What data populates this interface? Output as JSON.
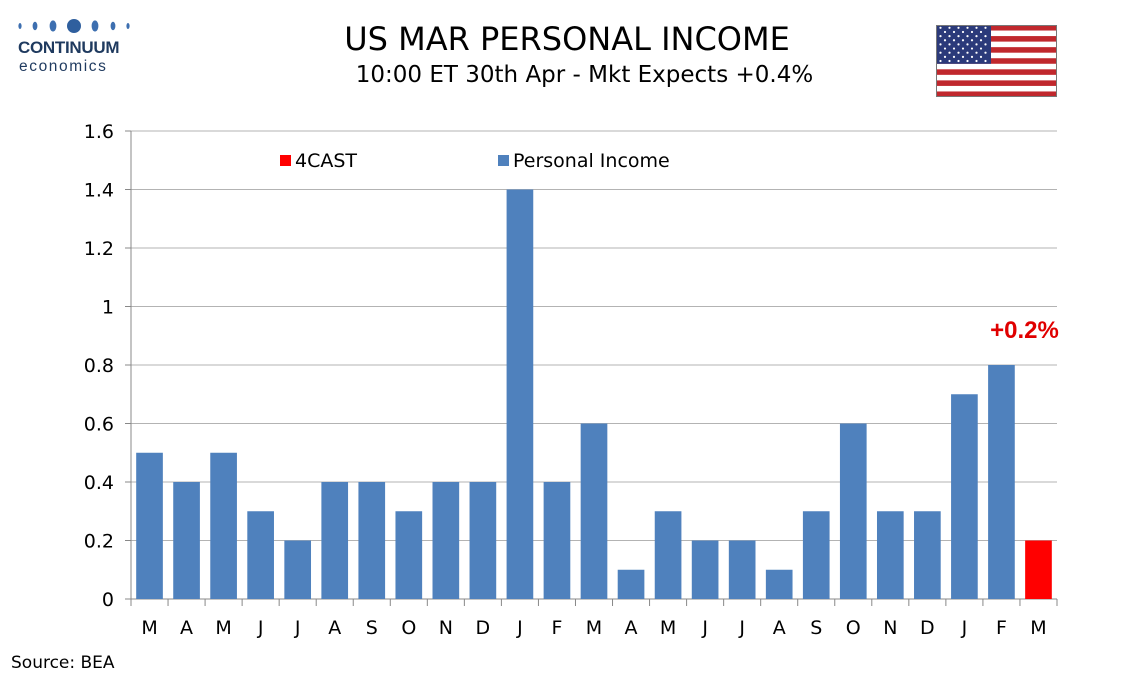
{
  "brand": {
    "name_top": "CONTINUUM",
    "name_bottom": "economics"
  },
  "header": {
    "title": "US MAR PERSONAL INCOME",
    "subtitle": "10:00 ET 30th Apr - Mkt Expects +0.4%"
  },
  "flag_icon": "us-flag-icon",
  "source": "Source: BEA",
  "colors": {
    "actual": "#4f81bd",
    "forecast": "#ff0000",
    "annotation": "#e00000",
    "grid": "#b3b3b3",
    "axis": "#888888"
  },
  "chart_data": {
    "type": "bar",
    "categories": [
      "M",
      "A",
      "M",
      "J",
      "J",
      "A",
      "S",
      "O",
      "N",
      "D",
      "J",
      "F",
      "M",
      "A",
      "M",
      "J",
      "J",
      "A",
      "S",
      "O",
      "N",
      "D",
      "J",
      "F",
      "M"
    ],
    "series": [
      {
        "name": "Personal Income",
        "values": [
          0.5,
          0.4,
          0.5,
          0.3,
          0.2,
          0.4,
          0.4,
          0.3,
          0.4,
          0.4,
          1.4,
          0.4,
          0.6,
          0.1,
          0.3,
          0.2,
          0.2,
          0.1,
          0.3,
          0.6,
          0.3,
          0.3,
          0.7,
          0.8,
          null
        ]
      },
      {
        "name": "4CAST",
        "values": [
          null,
          null,
          null,
          null,
          null,
          null,
          null,
          null,
          null,
          null,
          null,
          null,
          null,
          null,
          null,
          null,
          null,
          null,
          null,
          null,
          null,
          null,
          null,
          null,
          0.2
        ]
      }
    ],
    "ylim": [
      0,
      1.6
    ],
    "yticks": [
      0,
      0.2,
      0.4,
      0.6,
      0.8,
      1,
      1.2,
      1.4,
      1.6
    ],
    "ytick_labels": [
      "0",
      "0.2",
      "0.4",
      "0.6",
      "0.8",
      "1",
      "1.2",
      "1.4",
      "1.6"
    ],
    "grid": true,
    "legend": {
      "placement": "top-left",
      "entries": [
        "4CAST",
        "Personal Income"
      ]
    },
    "annotation": {
      "text": "+0.2%",
      "category_index": 24,
      "y": 0.92
    }
  }
}
